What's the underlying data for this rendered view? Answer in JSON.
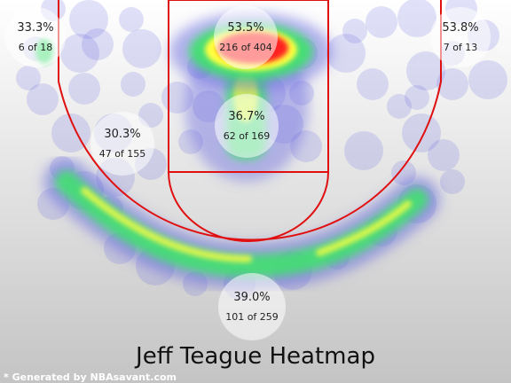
{
  "chart_data": {
    "type": "heatmap",
    "title": "Jeff Teague Heatmap",
    "credit": "* Generated by NBAsavant.com",
    "colors": {
      "court_lines": "#e01010",
      "background_top": "#ffffff",
      "background_bottom": "#c4c4c4",
      "heat_low": "#6a6ae0",
      "heat_mid": "#40e070",
      "heat_high": "#ffff40",
      "heat_peak": "#ff2020"
    },
    "zones": [
      {
        "id": "left-corner",
        "pct": "33.3%",
        "count": "6 of 18"
      },
      {
        "id": "restricted-area",
        "pct": "53.5%",
        "count": "216 of 404"
      },
      {
        "id": "right-corner",
        "pct": "53.8%",
        "count": "7 of 13"
      },
      {
        "id": "left-midrange",
        "pct": "30.3%",
        "count": "47 of 155"
      },
      {
        "id": "paint",
        "pct": "36.7%",
        "count": "62 of 169"
      },
      {
        "id": "above-break-three",
        "pct": "39.0%",
        "count": "101 of 259"
      }
    ]
  }
}
